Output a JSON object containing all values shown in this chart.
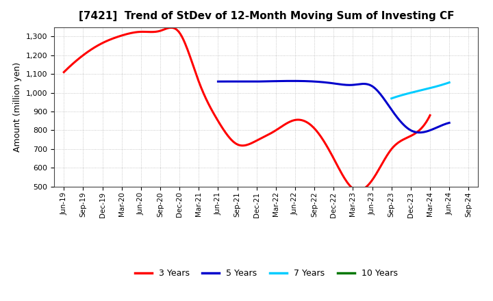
{
  "title": "[7421]  Trend of StDev of 12-Month Moving Sum of Investing CF",
  "ylabel": "Amount (million yen)",
  "ylim": [
    500,
    1350
  ],
  "yticks": [
    500,
    600,
    700,
    800,
    900,
    1000,
    1100,
    1200,
    1300
  ],
  "background_color": "#ffffff",
  "grid_color": "#999999",
  "series": {
    "3years": {
      "color": "#ff0000",
      "label": "3 Years",
      "x": [
        "Jun-19",
        "Sep-19",
        "Dec-19",
        "Mar-20",
        "Jun-20",
        "Sep-20",
        "Dec-20",
        "Mar-21",
        "Jun-21",
        "Sep-21",
        "Dec-21",
        "Mar-22",
        "Jun-22",
        "Sep-22",
        "Dec-22",
        "Mar-23",
        "Jun-23",
        "Sep-23",
        "Dec-23",
        "Mar-24",
        "Jun-24",
        "Sep-24"
      ],
      "y": [
        1110,
        1200,
        1265,
        1305,
        1325,
        1330,
        1320,
        1060,
        850,
        725,
        745,
        800,
        855,
        810,
        650,
        490,
        535,
        700,
        770,
        880,
        null,
        null
      ]
    },
    "5years": {
      "color": "#0000cc",
      "label": "5 Years",
      "x": [
        "Jun-19",
        "Sep-19",
        "Dec-19",
        "Mar-20",
        "Jun-20",
        "Sep-20",
        "Dec-20",
        "Mar-21",
        "Jun-21",
        "Sep-21",
        "Dec-21",
        "Mar-22",
        "Jun-22",
        "Sep-22",
        "Dec-22",
        "Mar-23",
        "Jun-23",
        "Sep-23",
        "Dec-23",
        "Mar-24",
        "Jun-24",
        "Sep-24"
      ],
      "y": [
        null,
        null,
        null,
        null,
        null,
        null,
        null,
        null,
        1060,
        1060,
        1060,
        1062,
        1063,
        1060,
        1050,
        1042,
        1035,
        910,
        800,
        800,
        840,
        null
      ]
    },
    "7years": {
      "color": "#00ccff",
      "label": "7 Years",
      "x": [
        "Jun-19",
        "Sep-19",
        "Dec-19",
        "Mar-20",
        "Jun-20",
        "Sep-20",
        "Dec-20",
        "Mar-21",
        "Jun-21",
        "Sep-21",
        "Dec-21",
        "Mar-22",
        "Jun-22",
        "Sep-22",
        "Dec-22",
        "Mar-23",
        "Jun-23",
        "Sep-23",
        "Dec-23",
        "Mar-24",
        "Jun-24",
        "Sep-24"
      ],
      "y": [
        null,
        null,
        null,
        null,
        null,
        null,
        null,
        null,
        null,
        null,
        null,
        null,
        null,
        null,
        null,
        null,
        null,
        970,
        1000,
        1025,
        1055,
        null
      ]
    },
    "10years": {
      "color": "#007700",
      "label": "10 Years",
      "x": [
        "Jun-19",
        "Sep-19",
        "Dec-19",
        "Mar-20",
        "Jun-20",
        "Sep-20",
        "Dec-20",
        "Mar-21",
        "Jun-21",
        "Sep-21",
        "Dec-21",
        "Mar-22",
        "Jun-22",
        "Sep-22",
        "Dec-22",
        "Mar-23",
        "Jun-23",
        "Sep-23",
        "Dec-23",
        "Mar-24",
        "Jun-24",
        "Sep-24"
      ],
      "y": [
        null,
        null,
        null,
        null,
        null,
        null,
        null,
        null,
        null,
        null,
        null,
        null,
        null,
        null,
        null,
        null,
        null,
        null,
        null,
        null,
        null,
        null
      ]
    }
  },
  "xtick_labels": [
    "Jun-19",
    "Sep-19",
    "Dec-19",
    "Mar-20",
    "Jun-20",
    "Sep-20",
    "Dec-20",
    "Mar-21",
    "Jun-21",
    "Sep-21",
    "Dec-21",
    "Mar-22",
    "Jun-22",
    "Sep-22",
    "Dec-22",
    "Mar-23",
    "Jun-23",
    "Sep-23",
    "Dec-23",
    "Mar-24",
    "Jun-24",
    "Sep-24"
  ],
  "legend": {
    "entries": [
      "3 Years",
      "5 Years",
      "7 Years",
      "10 Years"
    ],
    "colors": [
      "#ff0000",
      "#0000cc",
      "#00ccff",
      "#007700"
    ]
  },
  "linewidth": 2.2
}
